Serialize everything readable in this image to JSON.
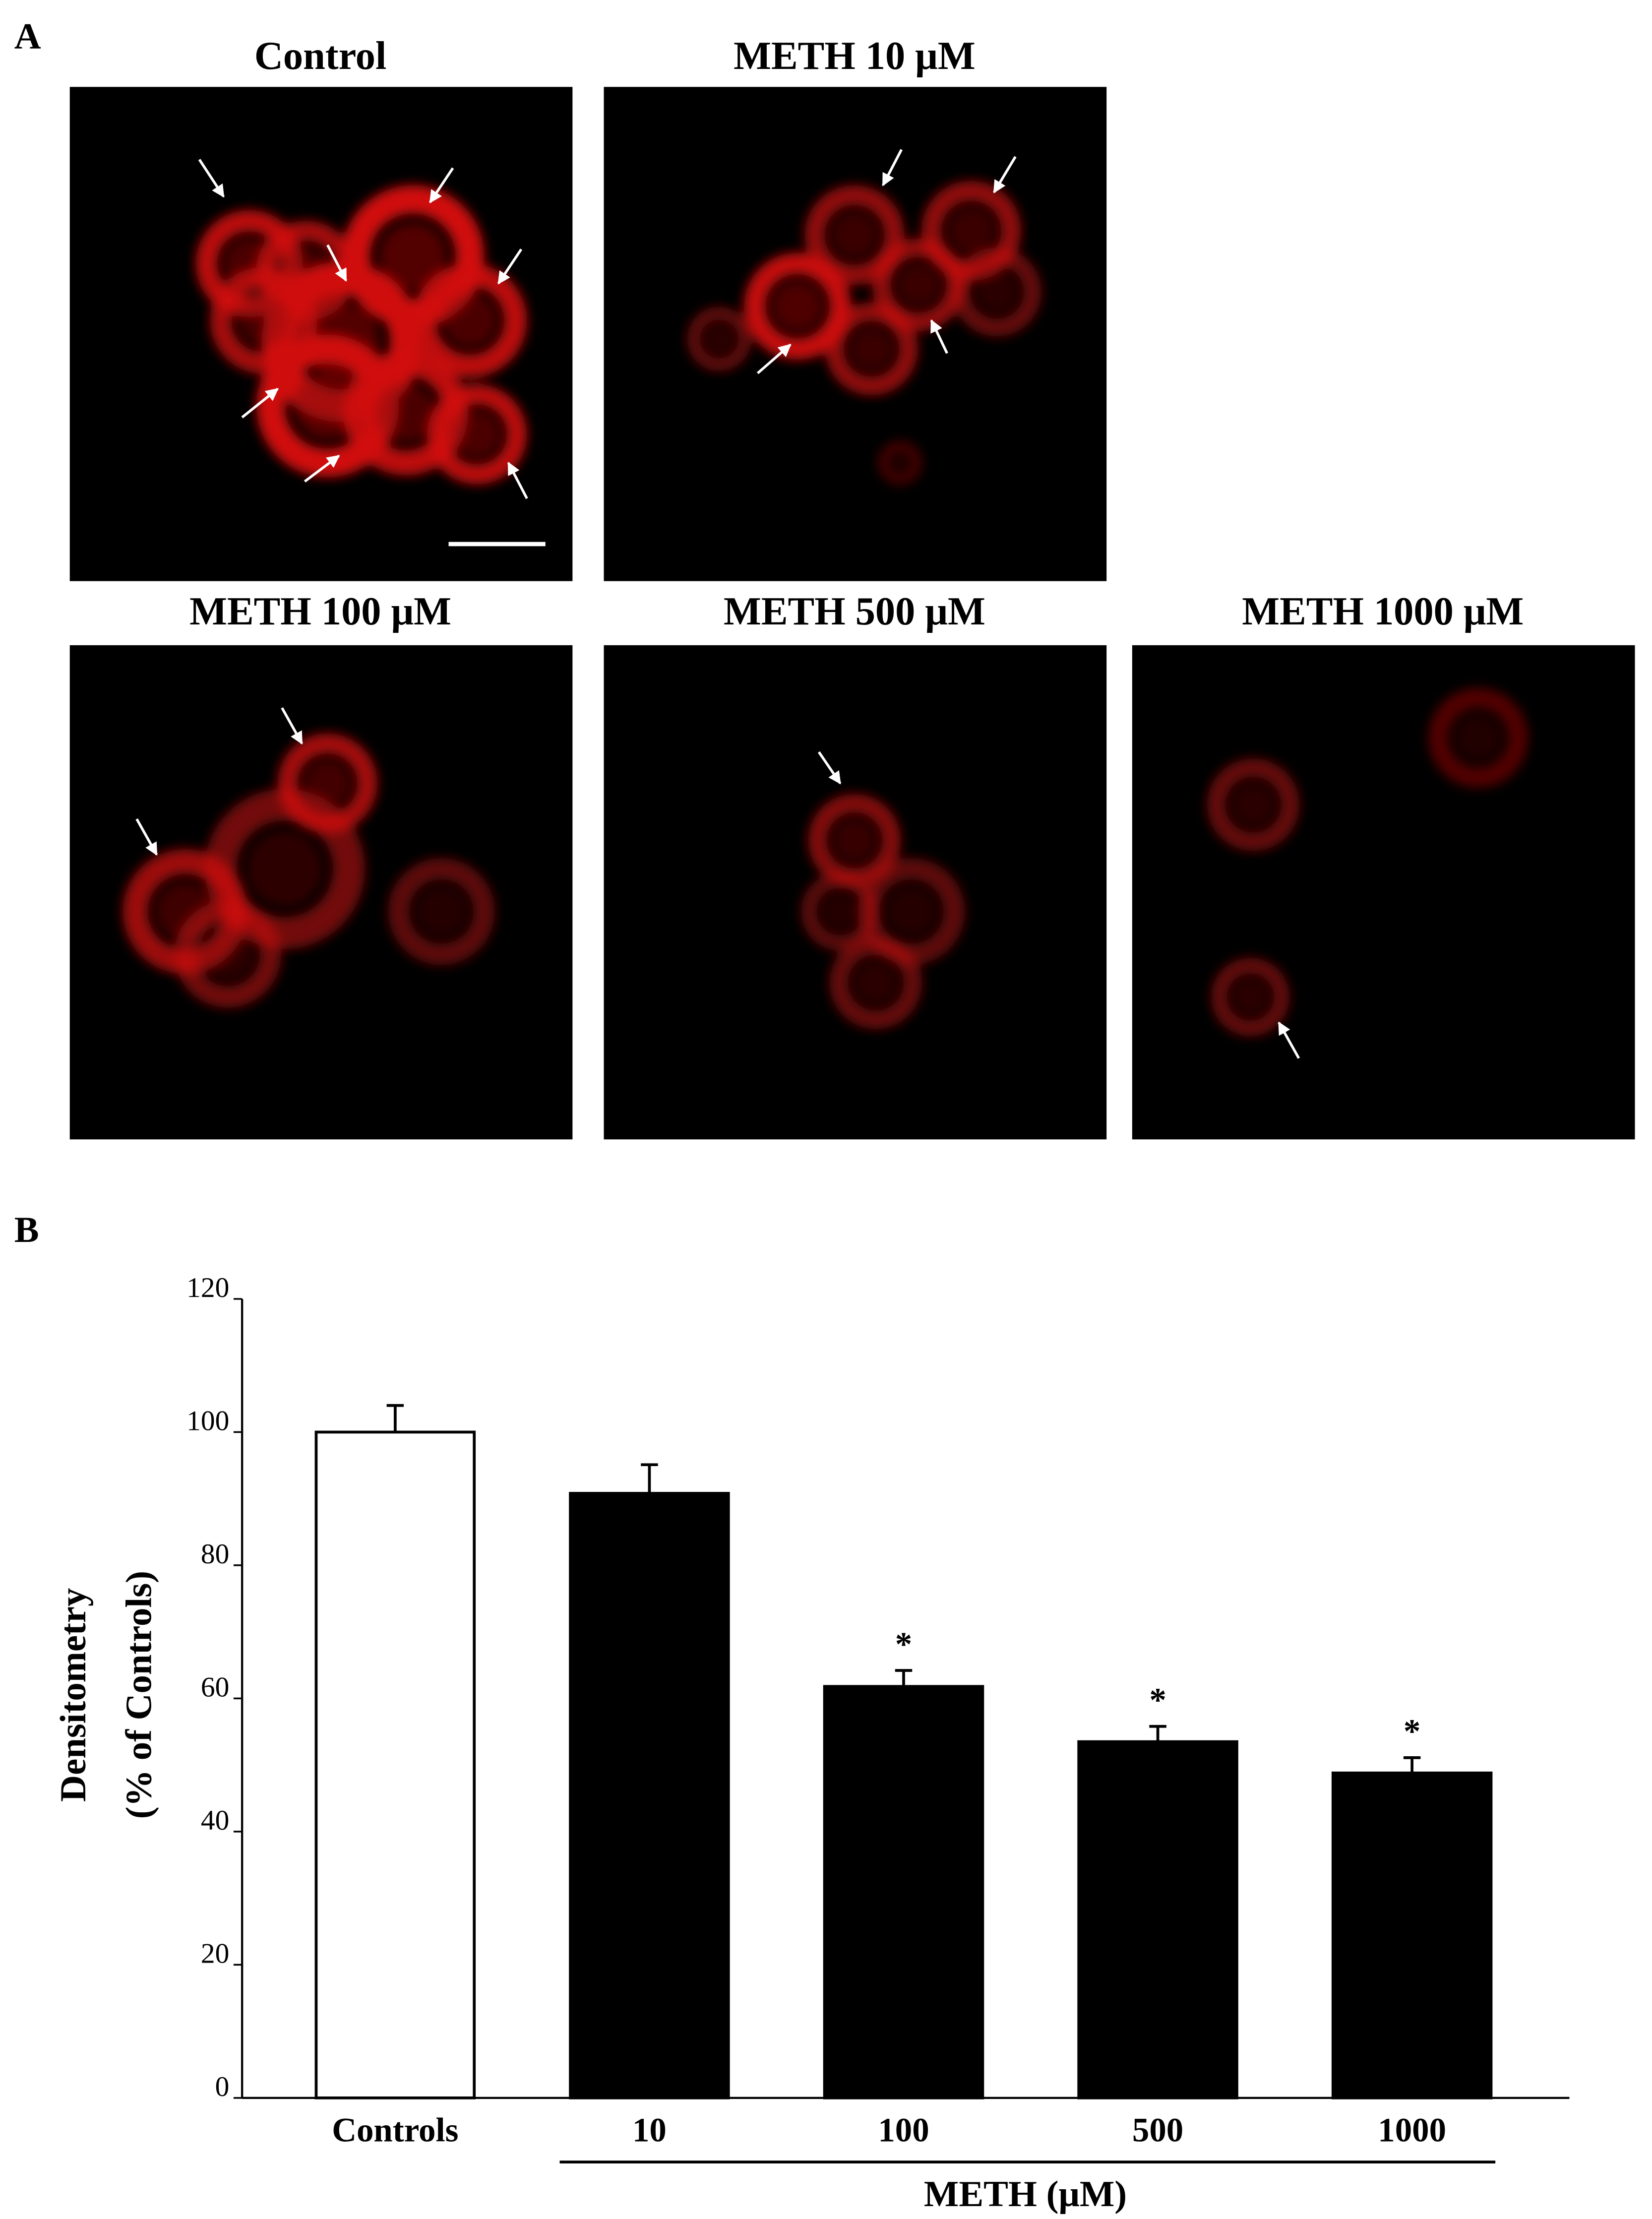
{
  "panel_labels": [
    "A",
    "B"
  ],
  "images": {
    "titles": [
      "Control",
      "METH  10 μM",
      "METH  100 μM",
      "METH  500 μM",
      "METH  1000 μM"
    ]
  },
  "chart_data": {
    "type": "bar",
    "ylabel": [
      "Densitometry",
      "(% of Controls)"
    ],
    "categories": [
      "Controls",
      "10",
      "100",
      "500",
      "1000"
    ],
    "values": [
      100,
      90.8,
      61.8,
      53.5,
      48.8
    ],
    "errors": [
      4,
      4.3,
      2.4,
      2.3,
      2.3
    ],
    "markers": [
      null,
      null,
      "*",
      "*",
      "*"
    ],
    "colors": [
      "#ffffff",
      "#000000",
      "#000000",
      "#000000",
      "#000000"
    ],
    "group_label": "METH (μM)",
    "ylim": [
      0,
      120
    ],
    "yticks": [
      0,
      20,
      40,
      60,
      80,
      100,
      120
    ]
  }
}
